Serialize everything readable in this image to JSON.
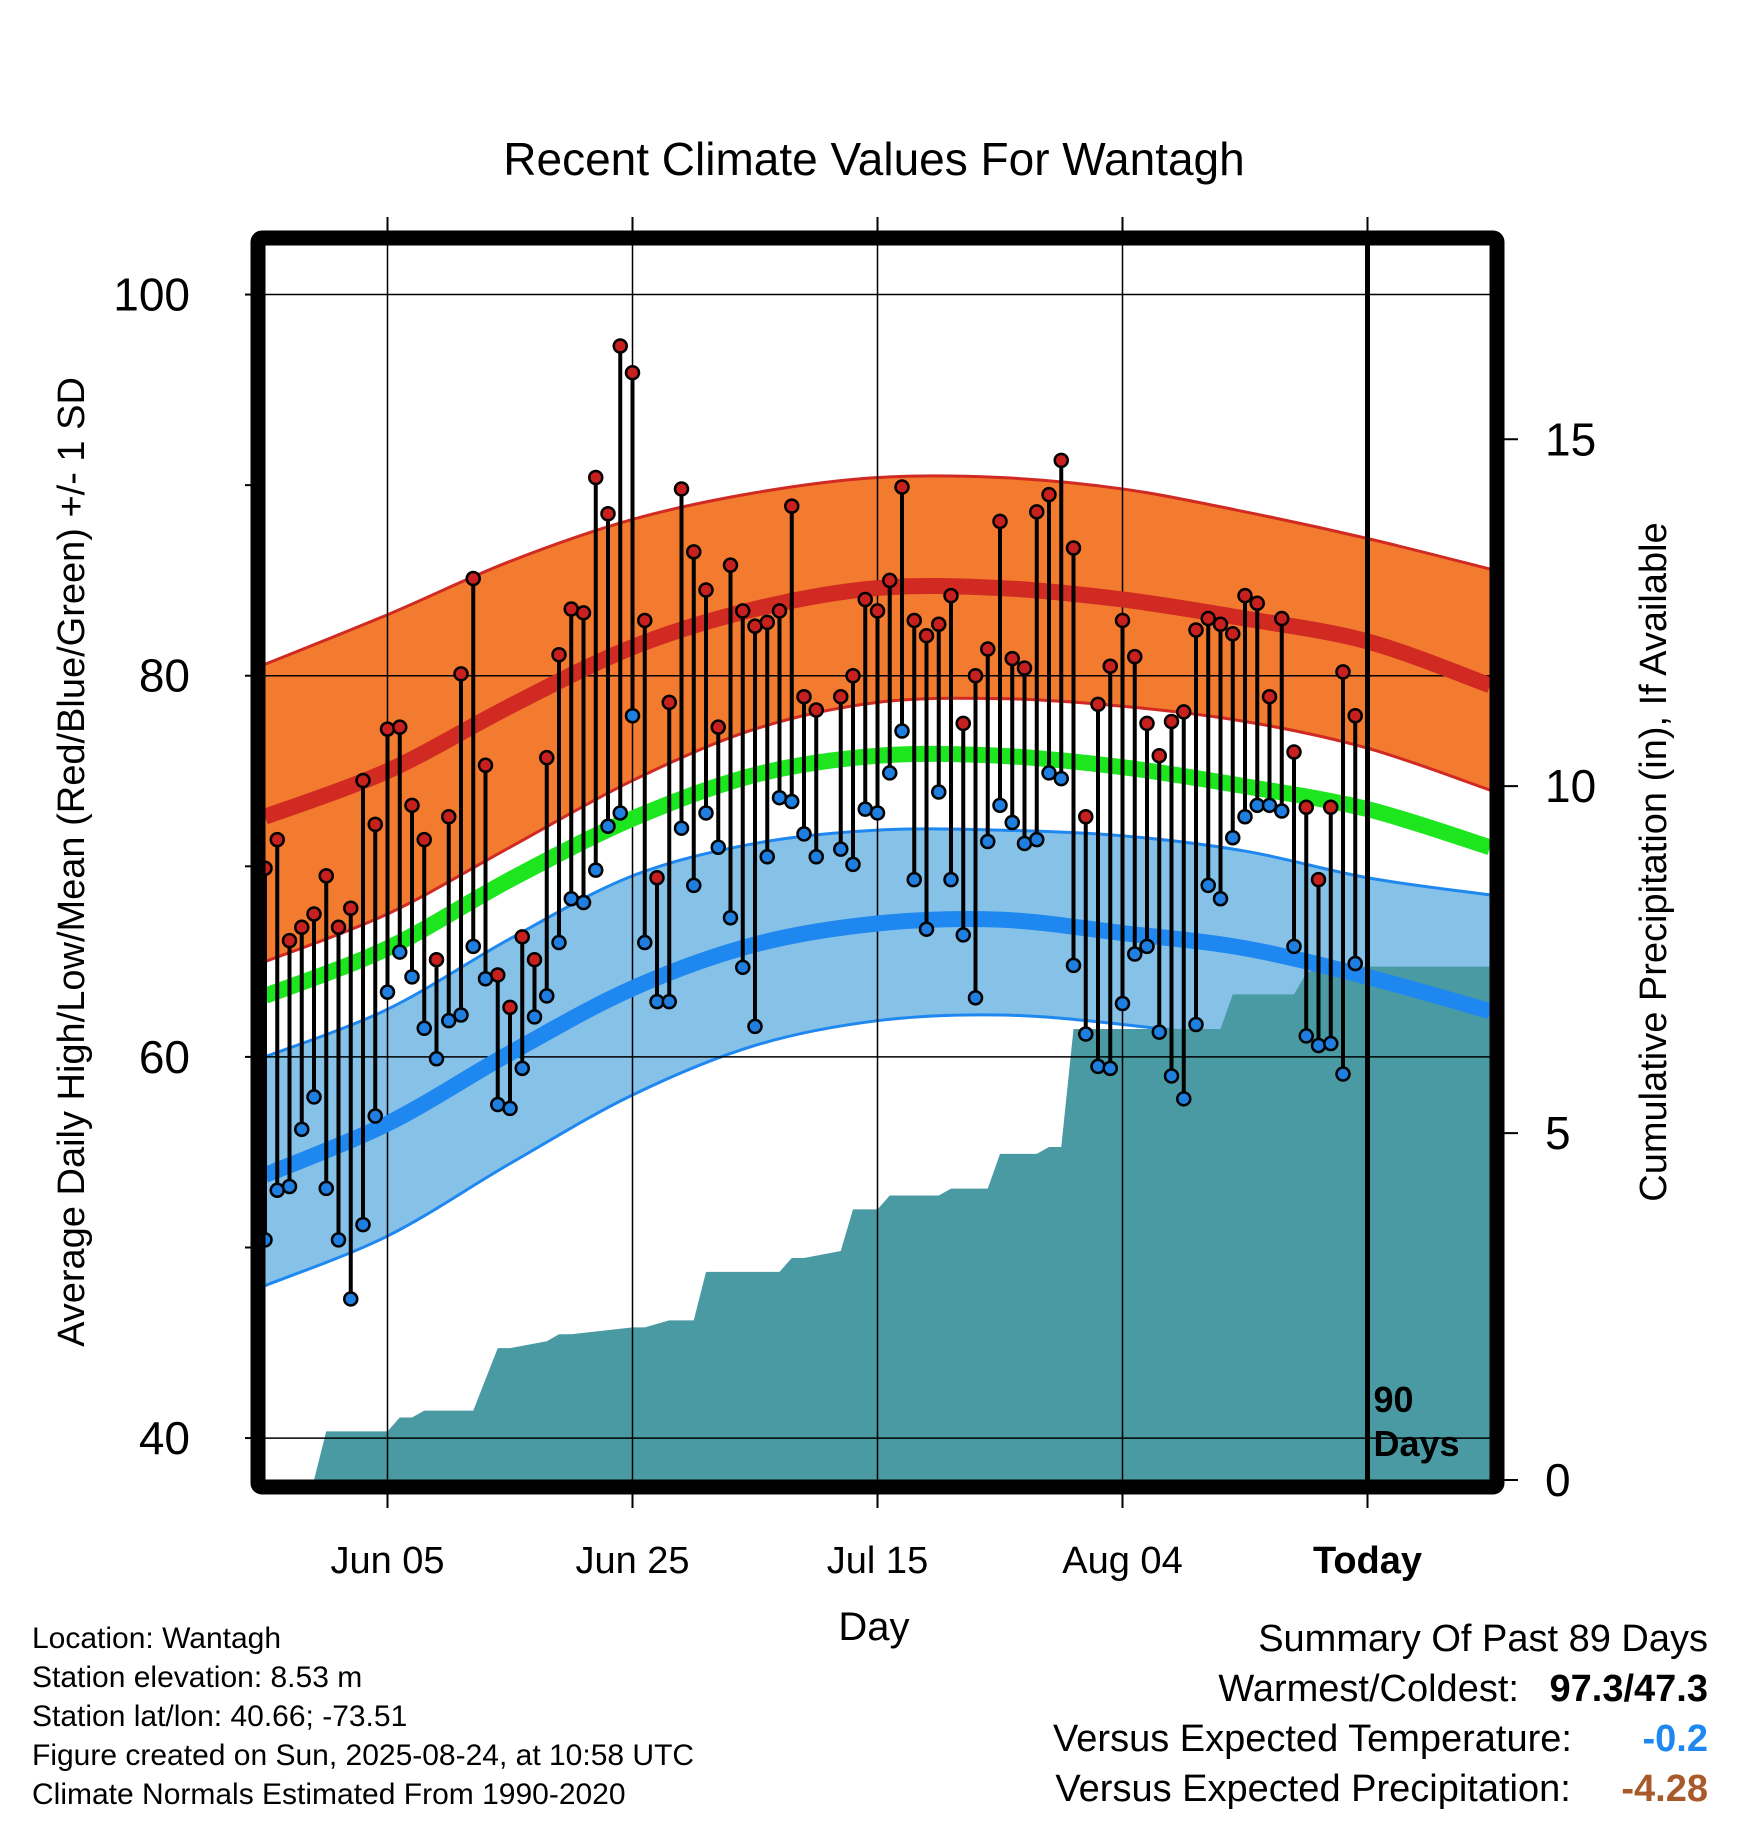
{
  "chart_data": {
    "type": "line",
    "title": "Recent Climate Values For Wantagh",
    "xlabel": "Day",
    "ylabel": "Average Daily High/Low/Mean (Red/Blue/Green) +/- 1 SD",
    "y2label": "Cumulative Precipitation (in), If Available",
    "xlim": [
      0,
      100
    ],
    "ylim": [
      37.8,
      102.6
    ],
    "y2lim": [
      0,
      17.8
    ],
    "yticks": [
      "40",
      "60",
      "80",
      "100"
    ],
    "y2ticks": [
      "0",
      "5",
      "10",
      "15"
    ],
    "xticks": [
      {
        "day": 10,
        "label": "Jun 05"
      },
      {
        "day": 30,
        "label": "Jun 25"
      },
      {
        "day": 50,
        "label": "Jul 15"
      },
      {
        "day": 70,
        "label": "Aug 04"
      },
      {
        "day": 90,
        "label": "Today"
      }
    ],
    "today_label": "90 Days",
    "grid": true,
    "normals": {
      "days": [
        0,
        10,
        20,
        30,
        40,
        50,
        60,
        70,
        80,
        90,
        100
      ],
      "high_mean": [
        72.6,
        75.0,
        78.4,
        81.5,
        83.5,
        84.6,
        84.6,
        84.0,
        83.0,
        81.8,
        79.5
      ],
      "high_upper": [
        80.6,
        83.2,
        86.0,
        88.2,
        89.6,
        90.4,
        90.4,
        89.8,
        88.6,
        87.2,
        85.6
      ],
      "high_lower": [
        65.0,
        67.5,
        71.0,
        74.5,
        77.2,
        78.6,
        78.8,
        78.4,
        77.6,
        76.2,
        74.0
      ],
      "mean": [
        63.2,
        65.7,
        69.3,
        72.5,
        74.8,
        75.8,
        75.8,
        75.2,
        74.2,
        73.0,
        71.0
      ],
      "low_mean": [
        53.8,
        56.5,
        60.2,
        63.6,
        65.9,
        67.0,
        67.2,
        66.5,
        65.7,
        64.2,
        62.4
      ],
      "low_upper": [
        60.0,
        62.5,
        66.2,
        69.5,
        71.2,
        71.9,
        71.9,
        71.6,
        70.8,
        69.4,
        68.5
      ],
      "low_lower": [
        48.0,
        50.6,
        54.4,
        58.0,
        60.6,
        61.9,
        62.2,
        61.7,
        60.8,
        58.9,
        57.0
      ]
    },
    "series": [
      {
        "name": "High",
        "x": [
          0,
          1,
          2,
          3,
          4,
          5,
          6,
          7,
          8,
          9,
          10,
          11,
          12,
          13,
          14,
          15,
          16,
          17,
          18,
          19,
          20,
          21,
          22,
          23,
          24,
          25,
          26,
          27,
          28,
          29,
          30,
          31,
          32,
          33,
          34,
          35,
          36,
          37,
          38,
          39,
          40,
          41,
          42,
          43,
          44,
          45,
          47,
          48,
          49,
          50,
          51,
          52,
          53,
          54,
          55,
          56,
          57,
          58,
          59,
          60,
          61,
          62,
          63,
          64,
          65,
          66,
          67,
          68,
          69,
          70,
          71,
          72,
          73,
          74,
          75,
          76,
          77,
          78,
          79,
          80,
          81,
          82,
          83,
          84,
          85,
          86,
          87,
          88,
          89
        ],
        "values": [
          69.9,
          71.4,
          66.1,
          66.8,
          67.5,
          69.5,
          66.8,
          67.8,
          74.5,
          72.2,
          77.2,
          77.3,
          73.2,
          71.4,
          65.1,
          72.6,
          80.1,
          85.1,
          75.3,
          64.3,
          62.6,
          66.3,
          65.1,
          75.7,
          81.1,
          83.5,
          83.3,
          90.4,
          88.5,
          97.3,
          95.9,
          82.9,
          69.4,
          78.6,
          89.8,
          86.5,
          84.5,
          77.3,
          85.8,
          83.4,
          82.6,
          82.8,
          83.4,
          88.9,
          78.9,
          78.2,
          78.9,
          80.0,
          84.0,
          83.4,
          85.0,
          89.9,
          82.9,
          82.1,
          82.7,
          84.2,
          77.5,
          80.0,
          81.4,
          88.1,
          80.9,
          80.4,
          88.6,
          89.5,
          91.3,
          86.7,
          72.6,
          78.5,
          80.5,
          82.9,
          81.0,
          77.5,
          75.8,
          77.6,
          78.1,
          82.4,
          83.0,
          82.7,
          82.2,
          84.2,
          83.8,
          78.9,
          83.0,
          76.0,
          73.1,
          69.3,
          73.1,
          80.2,
          77.9
        ],
        "color": "#c8201e"
      },
      {
        "name": "Low",
        "x": [
          0,
          1,
          2,
          3,
          4,
          5,
          6,
          7,
          8,
          9,
          10,
          11,
          12,
          13,
          14,
          15,
          16,
          17,
          18,
          19,
          20,
          21,
          22,
          23,
          24,
          25,
          26,
          27,
          28,
          29,
          30,
          31,
          32,
          33,
          34,
          35,
          36,
          37,
          38,
          39,
          40,
          41,
          42,
          43,
          44,
          45,
          47,
          48,
          49,
          50,
          51,
          52,
          53,
          54,
          55,
          56,
          57,
          58,
          59,
          60,
          61,
          62,
          63,
          64,
          65,
          66,
          67,
          68,
          69,
          70,
          71,
          72,
          73,
          74,
          75,
          76,
          77,
          78,
          79,
          80,
          81,
          82,
          83,
          84,
          85,
          86,
          87,
          88,
          89
        ],
        "values": [
          50.4,
          53.0,
          53.2,
          56.2,
          57.9,
          53.1,
          50.4,
          47.3,
          51.2,
          56.9,
          63.4,
          65.5,
          64.2,
          61.5,
          59.9,
          61.9,
          62.2,
          65.8,
          64.1,
          57.5,
          57.3,
          59.4,
          62.1,
          63.2,
          66.0,
          68.3,
          68.1,
          69.8,
          72.1,
          72.8,
          77.9,
          66.0,
          62.9,
          62.9,
          72.0,
          69.0,
          72.8,
          71.0,
          67.3,
          64.7,
          61.6,
          70.5,
          73.6,
          73.4,
          71.7,
          70.5,
          70.9,
          70.1,
          73.0,
          72.8,
          74.9,
          77.1,
          69.3,
          66.7,
          73.9,
          69.3,
          66.4,
          63.1,
          71.3,
          73.2,
          72.3,
          71.2,
          71.4,
          74.9,
          74.6,
          64.8,
          61.2,
          59.5,
          59.4,
          62.8,
          65.4,
          65.8,
          61.3,
          59.0,
          57.8,
          61.7,
          69.0,
          68.3,
          71.5,
          72.6,
          73.2,
          73.2,
          72.9,
          65.8,
          61.1,
          60.6,
          60.7,
          59.1,
          64.9
        ],
        "color": "#1e7fe0"
      }
    ],
    "precip_cumulative": {
      "days": [
        0,
        4,
        5,
        10,
        11,
        12,
        13,
        17,
        19,
        20,
        23,
        24,
        25,
        30,
        31,
        33,
        35,
        36,
        42,
        43,
        44,
        47,
        48,
        50,
        51,
        55,
        56,
        59,
        60,
        63,
        64,
        65,
        66,
        71,
        72,
        78,
        79,
        84,
        85,
        86,
        89,
        90,
        100
      ],
      "values": [
        0,
        0,
        0.7,
        0.7,
        0.9,
        0.9,
        1.0,
        1.0,
        1.9,
        1.9,
        2.0,
        2.1,
        2.1,
        2.2,
        2.2,
        2.3,
        2.3,
        3.0,
        3.0,
        3.2,
        3.2,
        3.3,
        3.9,
        3.9,
        4.1,
        4.1,
        4.2,
        4.2,
        4.7,
        4.7,
        4.8,
        4.8,
        6.5,
        6.5,
        6.5,
        6.5,
        7.0,
        7.0,
        7.3,
        7.4,
        7.4,
        7.4,
        7.4
      ],
      "color": "#4a9aa4"
    },
    "colors": {
      "high_band": "#f27b2f",
      "high_line": "#d02a22",
      "mean_line": "#1ee61e",
      "low_band": "#86c1e8",
      "low_line": "#1e88f0"
    }
  },
  "meta": {
    "location": "Location: Wantagh",
    "elevation": "Station elevation: 8.53 m",
    "latlon": "Station lat/lon: 40.66; -73.51",
    "created": "Figure created on Sun, 2025-08-24, at 10:58 UTC",
    "normals": "Climate Normals Estimated From 1990-2020"
  },
  "summary": {
    "title": "Summary Of Past 89 Days",
    "warm_cold_label": "Warmest/Coldest:",
    "warm_cold_value": "97.3/47.3",
    "temp_label": "Versus Expected Temperature:",
    "temp_value": "-0.2",
    "temp_color": "#1e88f0",
    "precip_label": "Versus Expected Precipitation:",
    "precip_value": "-4.28",
    "precip_color": "#a85a2a"
  }
}
